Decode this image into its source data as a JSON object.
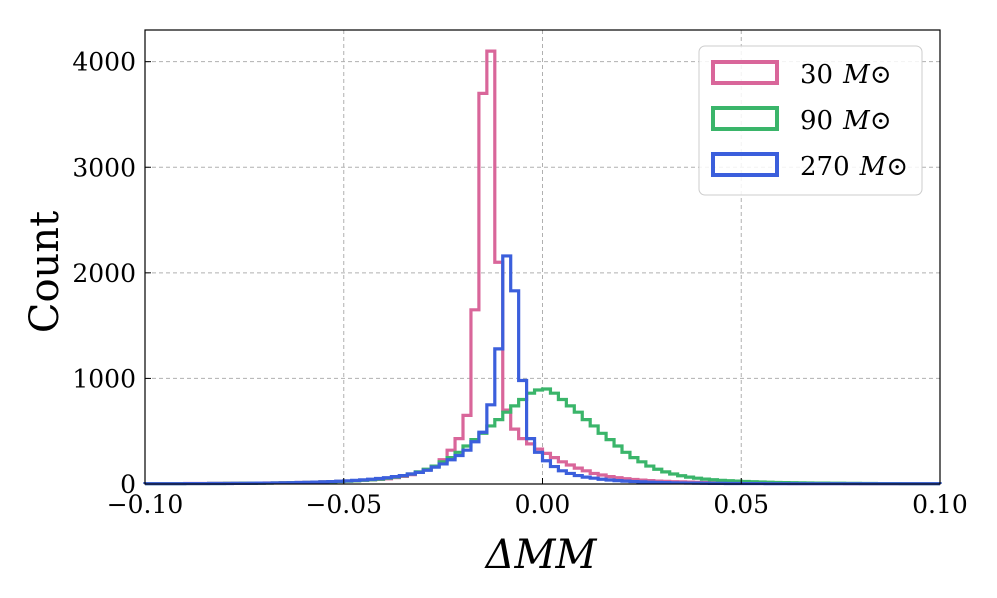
{
  "chart_data": {
    "type": "histogram",
    "xlabel": "ΔMM",
    "ylabel": "Count",
    "xlim": [
      -0.1,
      0.1
    ],
    "ylim": [
      0,
      4300
    ],
    "x_ticks": [
      -0.1,
      -0.05,
      0.0,
      0.05,
      0.1
    ],
    "x_tick_labels": [
      "−0.10",
      "−0.05",
      "0.00",
      "0.05",
      "0.10"
    ],
    "y_ticks": [
      0,
      1000,
      2000,
      3000,
      4000
    ],
    "y_tick_labels": [
      "0",
      "1000",
      "2000",
      "3000",
      "4000"
    ],
    "grid": true,
    "legend_position": "top-right",
    "bin_width": 0.002,
    "bin_start": -0.1,
    "series": [
      {
        "name": "30 M⊙",
        "legend_mass": "30",
        "legend_unit": "M⊙",
        "color": "#d9669a",
        "values": [
          4,
          4,
          4,
          4,
          4,
          5,
          5,
          5,
          6,
          6,
          7,
          7,
          8,
          8,
          9,
          10,
          10,
          12,
          13,
          15,
          16,
          18,
          20,
          22,
          25,
          28,
          31,
          35,
          39,
          44,
          50,
          60,
          72,
          88,
          110,
          135,
          170,
          230,
          320,
          430,
          650,
          1650,
          3700,
          4100,
          2100,
          700,
          520,
          430,
          380,
          330,
          290,
          250,
          210,
          180,
          150,
          125,
          100,
          85,
          70,
          60,
          50,
          43,
          37,
          32,
          28,
          25,
          22,
          20,
          18,
          16,
          14,
          12,
          11,
          10,
          9,
          8,
          8,
          7,
          7,
          6,
          6,
          5,
          5,
          5,
          4,
          4,
          4,
          4,
          3,
          3,
          3,
          3,
          3,
          3,
          3,
          3,
          3,
          3,
          3,
          3
        ]
      },
      {
        "name": "90 M⊙",
        "legend_mass": "90",
        "legend_unit": "M⊙",
        "color": "#3ab56a",
        "values": [
          3,
          3,
          3,
          3,
          3,
          4,
          4,
          4,
          5,
          5,
          6,
          6,
          7,
          7,
          8,
          9,
          10,
          11,
          12,
          13,
          15,
          17,
          19,
          21,
          24,
          27,
          31,
          35,
          40,
          46,
          55,
          65,
          78,
          95,
          115,
          140,
          170,
          210,
          250,
          300,
          360,
          420,
          480,
          550,
          610,
          680,
          740,
          800,
          860,
          890,
          900,
          860,
          800,
          740,
          680,
          610,
          550,
          480,
          420,
          360,
          300,
          250,
          210,
          170,
          140,
          115,
          95,
          78,
          65,
          55,
          46,
          40,
          35,
          31,
          27,
          24,
          21,
          19,
          17,
          15,
          13,
          12,
          11,
          10,
          9,
          8,
          7,
          7,
          6,
          6,
          5,
          5,
          4,
          4,
          4,
          3,
          3,
          3,
          3,
          3
        ]
      },
      {
        "name": "270 M⊙",
        "legend_mass": "270",
        "legend_unit": "M⊙",
        "color": "#3b5fdc",
        "values": [
          3,
          3,
          3,
          3,
          3,
          4,
          4,
          4,
          5,
          5,
          5,
          6,
          6,
          7,
          8,
          9,
          10,
          11,
          12,
          14,
          16,
          18,
          20,
          23,
          26,
          30,
          34,
          39,
          45,
          52,
          60,
          70,
          80,
          95,
          110,
          130,
          160,
          190,
          230,
          270,
          320,
          400,
          490,
          750,
          1280,
          2160,
          1830,
          980,
          430,
          300,
          220,
          165,
          125,
          100,
          80,
          65,
          55,
          45,
          38,
          32,
          27,
          23,
          20,
          17,
          15,
          13,
          11,
          10,
          9,
          8,
          7,
          6,
          6,
          5,
          5,
          4,
          4,
          4,
          3,
          3,
          3,
          3,
          3,
          3,
          3,
          3,
          3,
          3,
          3,
          3,
          3,
          3,
          3,
          3,
          3,
          3,
          3,
          3,
          3,
          3
        ]
      }
    ]
  }
}
